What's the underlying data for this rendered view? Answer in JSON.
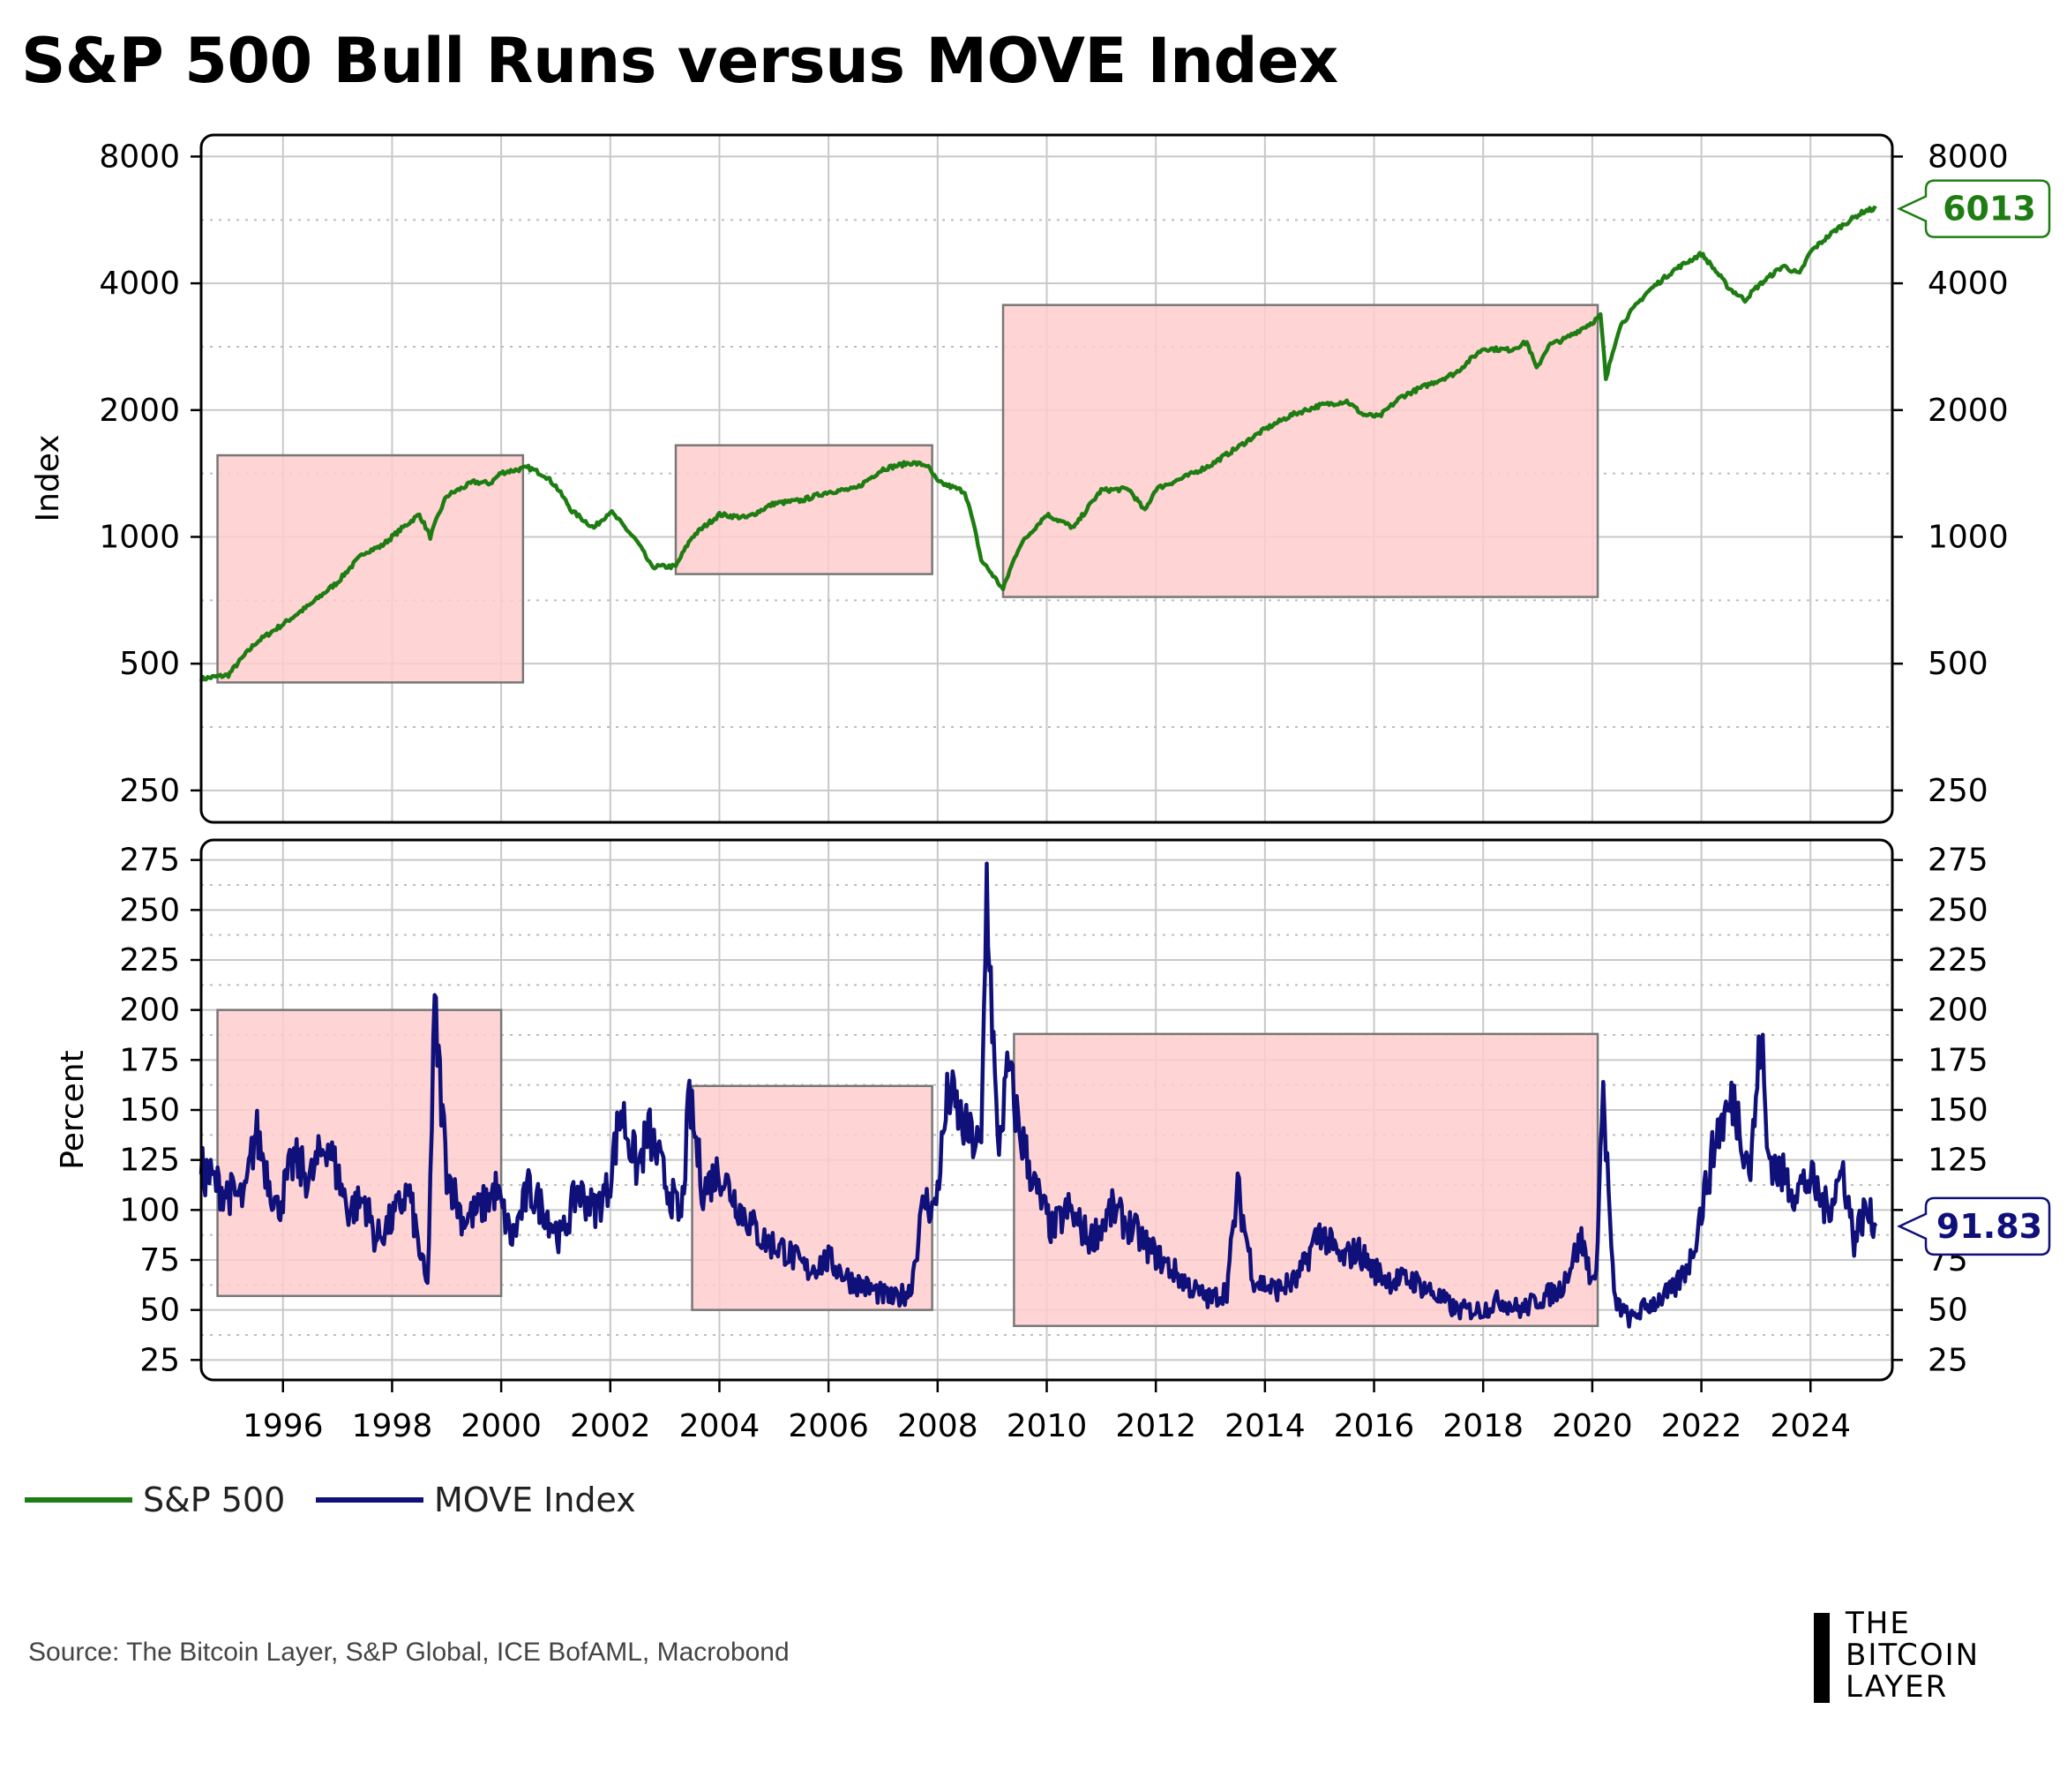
{
  "title": "S&P 500 Bull Runs versus MOVE Index",
  "source": "Source: The Bitcoin Layer, S&P Global, ICE BofAML, Macrobond",
  "logo": {
    "line1": "THE",
    "line2": "BITCOIN",
    "line3": "LAYER"
  },
  "colors": {
    "sp500": "#1e7d12",
    "move": "#10107a",
    "shade_fill": "#ffcdcd",
    "shade_stroke": "#777777"
  },
  "chart_data": [
    {
      "type": "line",
      "name": "top-panel",
      "ylabel": "Index",
      "yscale": "log2",
      "ylim": [
        210,
        9000
      ],
      "xlim": [
        1994.5,
        2025.5
      ],
      "yticks": [
        250,
        500,
        1000,
        2000,
        4000,
        8000
      ],
      "ytick_labels": [
        "250",
        "500",
        "1000",
        "2000",
        "4000",
        "8000"
      ],
      "series": [
        {
          "name": "S&P 500",
          "x": [
            1994.5,
            1995.0,
            1995.5,
            1996.0,
            1996.5,
            1997.0,
            1997.5,
            1997.8,
            1998.0,
            1998.5,
            1998.7,
            1999.0,
            1999.5,
            1999.8,
            2000.0,
            2000.5,
            2000.8,
            2001.0,
            2001.3,
            2001.7,
            2002.0,
            2002.5,
            2002.75,
            2003.2,
            2003.5,
            2004.0,
            2004.5,
            2005.0,
            2005.5,
            2006.0,
            2006.5,
            2007.0,
            2007.5,
            2007.8,
            2008.0,
            2008.5,
            2008.8,
            2009.2,
            2009.5,
            2010.0,
            2010.5,
            2011.0,
            2011.5,
            2011.8,
            2012.0,
            2012.5,
            2013.0,
            2013.5,
            2014.0,
            2014.5,
            2015.0,
            2015.5,
            2015.8,
            2016.1,
            2016.5,
            2017.0,
            2017.5,
            2018.0,
            2018.5,
            2018.8,
            2018.98,
            2019.2,
            2019.5,
            2020.0,
            2020.15,
            2020.25,
            2020.5,
            2021.0,
            2021.5,
            2022.0,
            2022.5,
            2022.8,
            2023.0,
            2023.5,
            2023.8,
            2024.0,
            2024.5,
            2025.0,
            2025.2
          ],
          "values": [
            460,
            470,
            560,
            620,
            690,
            780,
            920,
            950,
            1000,
            1130,
            1000,
            1250,
            1350,
            1340,
            1420,
            1460,
            1400,
            1320,
            1150,
            1050,
            1150,
            970,
            850,
            850,
            1000,
            1130,
            1110,
            1200,
            1220,
            1280,
            1300,
            1450,
            1500,
            1480,
            1350,
            1280,
            880,
            750,
            950,
            1130,
            1050,
            1290,
            1300,
            1150,
            1300,
            1380,
            1480,
            1630,
            1800,
            1950,
            2050,
            2100,
            1950,
            1930,
            2150,
            2300,
            2450,
            2800,
            2780,
            2900,
            2500,
            2850,
            2950,
            3230,
            3350,
            2350,
            3150,
            3800,
            4300,
            4700,
            3900,
            3650,
            3900,
            4400,
            4200,
            4750,
            5400,
            5950,
            6013
          ]
        }
      ],
      "bull_runs": [
        [
          1994.8,
          2000.4
        ],
        [
          2003.2,
          2007.9
        ],
        [
          2009.2,
          2020.1
        ]
      ],
      "last_value_label": "6013"
    },
    {
      "type": "line",
      "name": "bottom-panel",
      "ylabel": "Percent",
      "ylim": [
        15,
        285
      ],
      "xlim": [
        1994.5,
        2025.5
      ],
      "yticks": [
        25,
        50,
        75,
        100,
        125,
        150,
        175,
        200,
        225,
        250,
        275
      ],
      "ytick_labels": [
        "25",
        "50",
        "75",
        "100",
        "125",
        "150",
        "175",
        "200",
        "225",
        "250",
        "275"
      ],
      "xticks": [
        1996,
        1998,
        2000,
        2002,
        2004,
        2006,
        2008,
        2010,
        2012,
        2014,
        2016,
        2018,
        2020,
        2022,
        2024
      ],
      "xtick_labels": [
        "1996",
        "1998",
        "2000",
        "2002",
        "2004",
        "2006",
        "2008",
        "2010",
        "2012",
        "2014",
        "2016",
        "2018",
        "2020",
        "2022",
        "2024"
      ],
      "series": [
        {
          "name": "MOVE Index",
          "x": [
            1994.5,
            1994.9,
            1995.3,
            1995.5,
            1995.9,
            1996.2,
            1996.5,
            1996.8,
            1997.2,
            1997.5,
            1997.7,
            1998.0,
            1998.3,
            1998.5,
            1998.65,
            1998.78,
            1999.0,
            1999.3,
            1999.6,
            1999.9,
            2000.2,
            2000.5,
            2000.8,
            2001.1,
            2001.4,
            2001.7,
            2001.95,
            2002.2,
            2002.5,
            2002.7,
            2003.0,
            2003.3,
            2003.45,
            2003.7,
            2004.0,
            2004.4,
            2004.8,
            2005.2,
            2005.6,
            2006.0,
            2006.4,
            2006.8,
            2007.2,
            2007.5,
            2007.75,
            2007.95,
            2008.2,
            2008.5,
            2008.8,
            2008.9,
            2009.1,
            2009.3,
            2009.5,
            2009.8,
            2010.1,
            2010.4,
            2010.8,
            2011.2,
            2011.6,
            2011.9,
            2012.3,
            2012.7,
            2013.0,
            2013.3,
            2013.5,
            2013.8,
            2014.2,
            2014.6,
            2015.0,
            2015.4,
            2015.7,
            2016.0,
            2016.3,
            2016.7,
            2017.0,
            2017.5,
            2018.0,
            2018.3,
            2018.7,
            2019.0,
            2019.4,
            2019.8,
            2020.05,
            2020.2,
            2020.4,
            2020.7,
            2020.9,
            2021.2,
            2021.5,
            2021.8,
            2022.0,
            2022.3,
            2022.6,
            2022.9,
            2023.1,
            2023.2,
            2023.4,
            2023.7,
            2024.0,
            2024.3,
            2024.6,
            2024.8,
            2025.0,
            2025.2
          ],
          "values": [
            120,
            110,
            105,
            140,
            100,
            125,
            115,
            135,
            100,
            105,
            85,
            95,
            110,
            80,
            60,
            200,
            120,
            95,
            100,
            110,
            85,
            110,
            100,
            85,
            110,
            100,
            110,
            150,
            120,
            140,
            115,
            95,
            155,
            110,
            120,
            100,
            85,
            80,
            70,
            75,
            65,
            60,
            55,
            60,
            105,
            100,
            160,
            140,
            130,
            265,
            130,
            170,
            140,
            110,
            90,
            100,
            85,
            100,
            90,
            80,
            70,
            60,
            55,
            60,
            110,
            65,
            60,
            65,
            90,
            75,
            80,
            70,
            65,
            65,
            60,
            50,
            50,
            55,
            50,
            55,
            60,
            85,
            60,
            160,
            55,
            45,
            50,
            55,
            60,
            75,
            100,
            140,
            155,
            120,
            190,
            130,
            120,
            110,
            115,
            100,
            120,
            85,
            100,
            91.83
          ]
        }
      ],
      "bull_runs": [
        [
          1994.8,
          2000.0
        ],
        [
          2003.5,
          2007.9
        ],
        [
          2009.4,
          2020.1
        ]
      ],
      "bull_run_tops": [
        200,
        162,
        188
      ],
      "bull_run_bottoms": [
        57,
        50,
        42
      ],
      "last_value_label": "91.83"
    }
  ],
  "legend": [
    {
      "label": "S&P 500"
    },
    {
      "label": "MOVE Index"
    }
  ]
}
